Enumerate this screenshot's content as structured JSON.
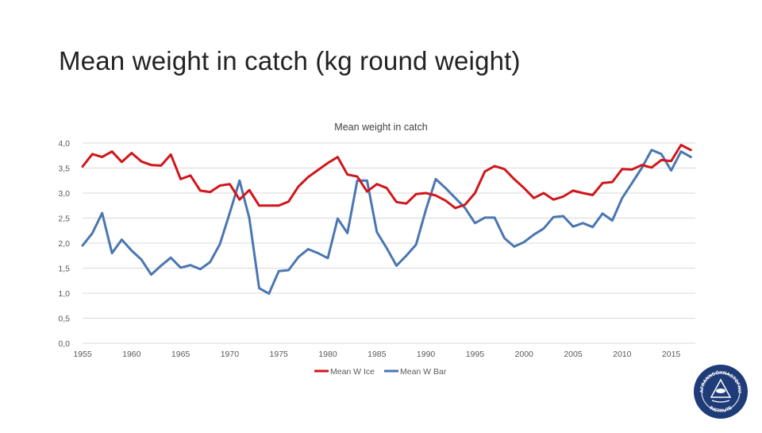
{
  "slide": {
    "title": "Mean weight in catch (kg round weight)"
  },
  "colors": {
    "ice": "#d0161b",
    "bar": "#4a76b1",
    "grid": "#d9d9d9",
    "axis_text": "#595959",
    "logo": "#1f3c78"
  },
  "logo": {
    "icon": "institute-seal-icon",
    "text_top": "HAFRANNSÓKNASTOFNUN",
    "text_bottom": "INSTITUTE"
  },
  "chart_data": {
    "type": "line",
    "title": "Mean weight in catch",
    "xlabel": "",
    "ylabel": "",
    "ylim": [
      0,
      4
    ],
    "xlim": [
      1955,
      2018
    ],
    "yticks": [
      "0,0",
      "0,5",
      "1,0",
      "1,5",
      "2,0",
      "2,5",
      "3,0",
      "3,5",
      "4,0"
    ],
    "xticks": [
      "1955",
      "1960",
      "1965",
      "1970",
      "1975",
      "1980",
      "1985",
      "1990",
      "1995",
      "2000",
      "2005",
      "2010",
      "2015"
    ],
    "grid": true,
    "legend_position": "bottom",
    "x": [
      1955,
      1956,
      1957,
      1958,
      1959,
      1960,
      1961,
      1962,
      1963,
      1964,
      1965,
      1966,
      1967,
      1968,
      1969,
      1970,
      1971,
      1972,
      1973,
      1974,
      1975,
      1976,
      1977,
      1978,
      1979,
      1980,
      1981,
      1982,
      1983,
      1984,
      1985,
      1986,
      1987,
      1988,
      1989,
      1990,
      1991,
      1992,
      1993,
      1994,
      1995,
      1996,
      1997,
      1998,
      1999,
      2000,
      2001,
      2002,
      2003,
      2004,
      2005,
      2006,
      2007,
      2008,
      2009,
      2010,
      2011,
      2012,
      2013,
      2014,
      2015,
      2016,
      2017
    ],
    "series": [
      {
        "name": "Mean W Ice",
        "values": [
          3.53,
          3.78,
          3.72,
          3.83,
          3.62,
          3.8,
          3.63,
          3.56,
          3.55,
          3.77,
          3.28,
          3.35,
          3.05,
          3.02,
          3.15,
          3.18,
          2.87,
          3.06,
          2.75,
          2.75,
          2.75,
          2.83,
          3.13,
          3.32,
          3.46,
          3.6,
          3.72,
          3.37,
          3.33,
          3.03,
          3.18,
          3.1,
          2.82,
          2.79,
          2.98,
          3.0,
          2.95,
          2.85,
          2.7,
          2.77,
          3.0,
          3.43,
          3.54,
          3.48,
          3.28,
          3.1,
          2.9,
          3.0,
          2.87,
          2.93,
          3.05,
          3.0,
          2.96,
          3.2,
          3.22,
          3.48,
          3.47,
          3.56,
          3.51,
          3.66,
          3.64,
          3.96,
          3.86
        ]
      },
      {
        "name": "Mean W Bar",
        "values": [
          1.95,
          2.2,
          2.6,
          1.8,
          2.07,
          1.85,
          1.67,
          1.37,
          1.55,
          1.71,
          1.51,
          1.56,
          1.48,
          1.62,
          1.98,
          2.6,
          3.25,
          2.5,
          1.1,
          0.99,
          1.44,
          1.46,
          1.72,
          1.88,
          1.8,
          1.7,
          2.49,
          2.2,
          3.25,
          3.25,
          2.22,
          1.9,
          1.55,
          1.75,
          1.97,
          2.67,
          3.28,
          3.1,
          2.9,
          2.7,
          2.4,
          2.51,
          2.51,
          2.1,
          1.93,
          2.02,
          2.17,
          2.29,
          2.52,
          2.54,
          2.33,
          2.4,
          2.32,
          2.59,
          2.45,
          2.9,
          3.2,
          3.5,
          3.86,
          3.78,
          3.45,
          3.83,
          3.72
        ]
      }
    ]
  }
}
